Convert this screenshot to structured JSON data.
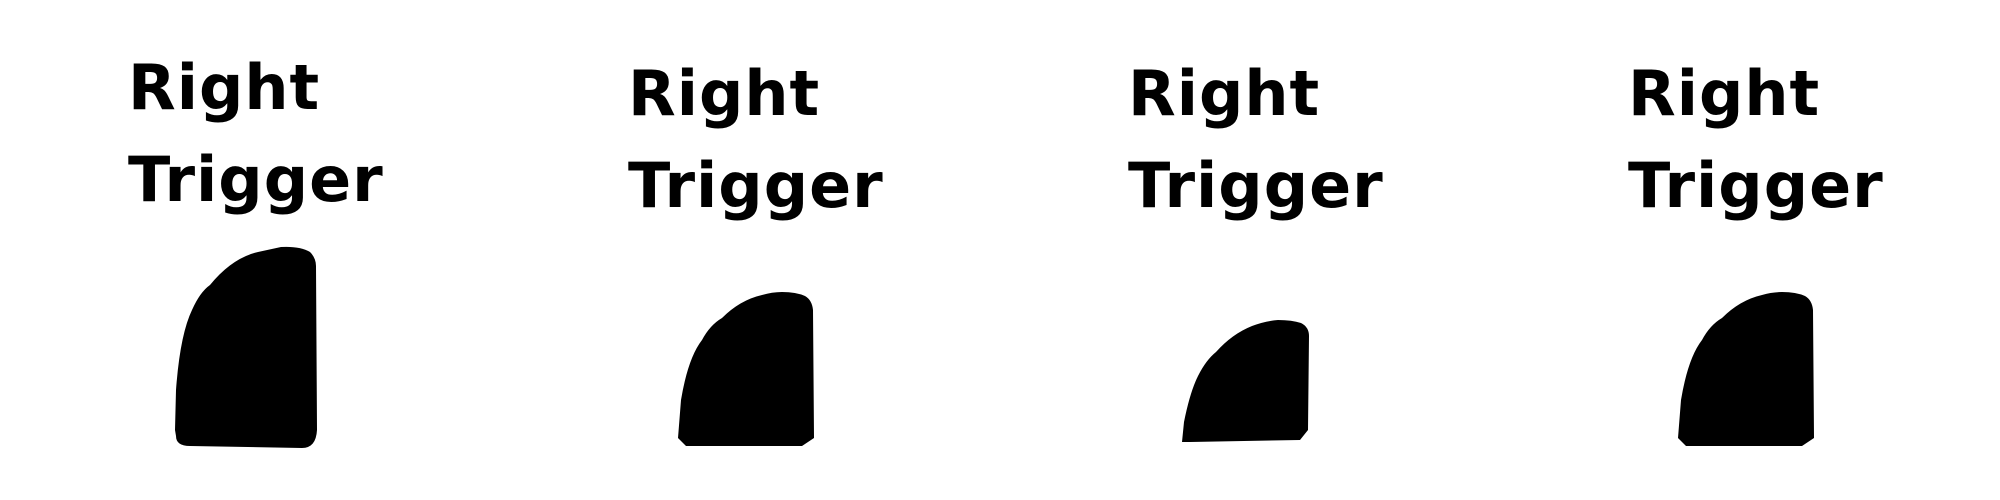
{
  "frames": [
    {
      "label_line1": "Right",
      "label_line2": "Trigger",
      "press_level": 0.0,
      "color": "#000000"
    },
    {
      "label_line1": "Right",
      "label_line2": "Trigger",
      "press_level": 0.33,
      "color": "#000000"
    },
    {
      "label_line1": "Right",
      "label_line2": "Trigger",
      "press_level": 0.66,
      "color": "#000000"
    },
    {
      "label_line1": "Right",
      "label_line2": "Trigger",
      "press_level": 0.33,
      "color": "#000000"
    }
  ]
}
